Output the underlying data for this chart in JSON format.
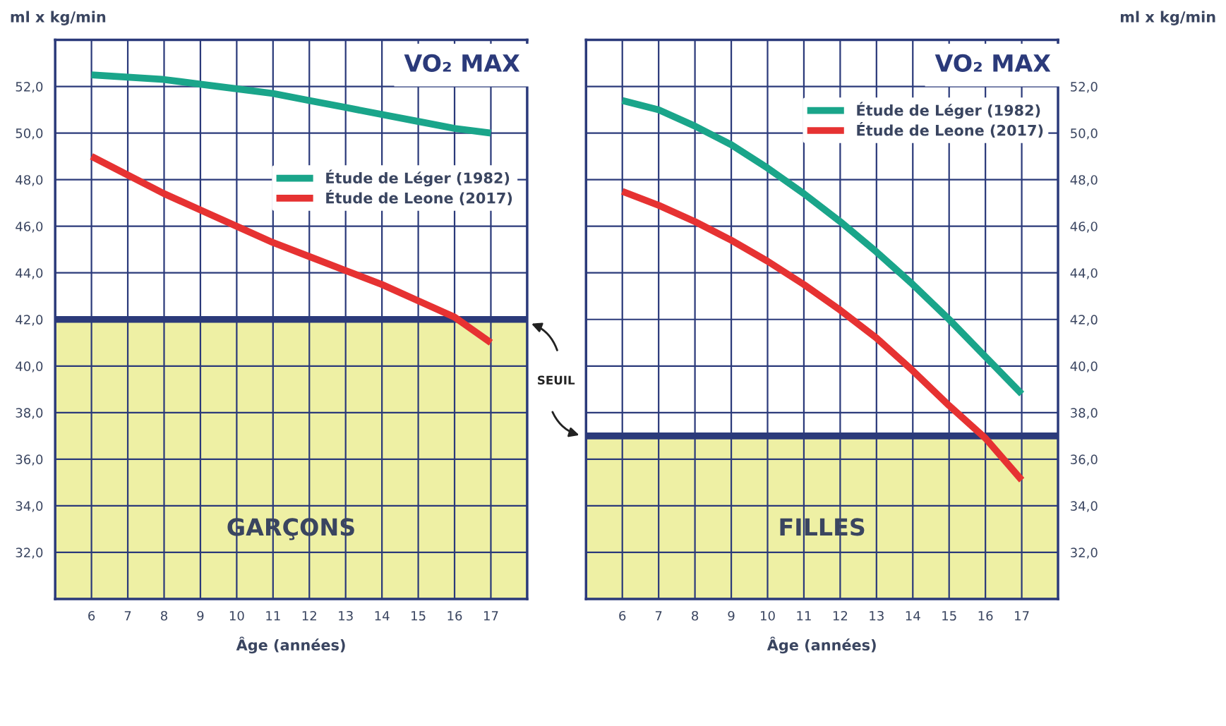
{
  "chart_data": [
    {
      "type": "line",
      "title": "VO₂ MAX",
      "xlabel": "Âge (années)",
      "ylabel": "ml x kg/min",
      "x": [
        6,
        7,
        8,
        9,
        10,
        11,
        12,
        13,
        14,
        15,
        16,
        17
      ],
      "series": [
        {
          "name": "Étude de Léger (1982)",
          "color": "#1aa58a",
          "values": [
            52.5,
            52.4,
            52.3,
            52.1,
            51.9,
            51.7,
            51.4,
            51.1,
            50.8,
            50.5,
            50.2,
            50.0
          ]
        },
        {
          "name": "Étude de Leone (2017)",
          "color": "#e63232",
          "values": [
            49.0,
            48.2,
            47.4,
            46.7,
            46.0,
            45.3,
            44.7,
            44.1,
            43.5,
            42.8,
            42.1,
            41.0
          ]
        }
      ],
      "xlim": [
        5,
        18
      ],
      "xticks": [
        6,
        7,
        8,
        9,
        10,
        11,
        12,
        13,
        14,
        15,
        16,
        17
      ],
      "ylim": [
        30,
        54
      ],
      "yticks": [
        {
          "value": 32,
          "label": "32,0"
        },
        {
          "value": 34,
          "label": "34,0"
        },
        {
          "value": 36,
          "label": "36,0"
        },
        {
          "value": 38,
          "label": "38,0"
        },
        {
          "value": 40,
          "label": "40,0"
        },
        {
          "value": 42,
          "label": "42,0"
        },
        {
          "value": 44,
          "label": "44,0"
        },
        {
          "value": 46,
          "label": "46,0"
        },
        {
          "value": 48,
          "label": "48,0"
        },
        {
          "value": 50,
          "label": "50,0"
        },
        {
          "value": 52,
          "label": "52,0"
        }
      ],
      "ref_lines": [
        {
          "axis": "y",
          "value": 42,
          "color": "#2b3a7a"
        }
      ],
      "bands": [
        {
          "axis": "y",
          "from": 30,
          "to": 42,
          "color": "#eef0a4"
        }
      ],
      "annotations": [
        "GARÇONS",
        "SEUIL"
      ],
      "grid": true,
      "legend": "right"
    },
    {
      "type": "line",
      "title": "VO₂ MAX",
      "xlabel": "Âge (années)",
      "ylabel": "ml x kg/min",
      "x": [
        6,
        7,
        8,
        9,
        10,
        11,
        12,
        13,
        14,
        15,
        16,
        17
      ],
      "series": [
        {
          "name": "Étude de Léger (1982)",
          "color": "#1aa58a",
          "values": [
            51.4,
            51.0,
            50.3,
            49.5,
            48.5,
            47.4,
            46.2,
            44.9,
            43.5,
            42.0,
            40.4,
            38.8
          ]
        },
        {
          "name": "Étude de Leone (2017)",
          "color": "#e63232",
          "values": [
            47.5,
            46.9,
            46.2,
            45.4,
            44.5,
            43.5,
            42.4,
            41.2,
            39.8,
            38.3,
            36.9,
            35.1
          ]
        }
      ],
      "xlim": [
        5,
        18
      ],
      "xticks": [
        6,
        7,
        8,
        9,
        10,
        11,
        12,
        13,
        14,
        15,
        16,
        17
      ],
      "ylim": [
        30,
        54
      ],
      "yticks": [
        {
          "value": 32,
          "label": "32,0"
        },
        {
          "value": 34,
          "label": "34,0"
        },
        {
          "value": 36,
          "label": "36,0"
        },
        {
          "value": 38,
          "label": "38,0"
        },
        {
          "value": 40,
          "label": "40,0"
        },
        {
          "value": 42,
          "label": "42,0"
        },
        {
          "value": 44,
          "label": "44,0"
        },
        {
          "value": 46,
          "label": "46,0"
        },
        {
          "value": 48,
          "label": "48,0"
        },
        {
          "value": 50,
          "label": "50,0"
        },
        {
          "value": 52,
          "label": "52,0"
        }
      ],
      "ref_lines": [
        {
          "axis": "y",
          "value": 37,
          "color": "#2b3a7a"
        }
      ],
      "bands": [
        {
          "axis": "y",
          "from": 30,
          "to": 37,
          "color": "#eef0a4"
        }
      ],
      "annotations": [
        "FILLES"
      ],
      "grid": true,
      "legend": "top right"
    }
  ]
}
